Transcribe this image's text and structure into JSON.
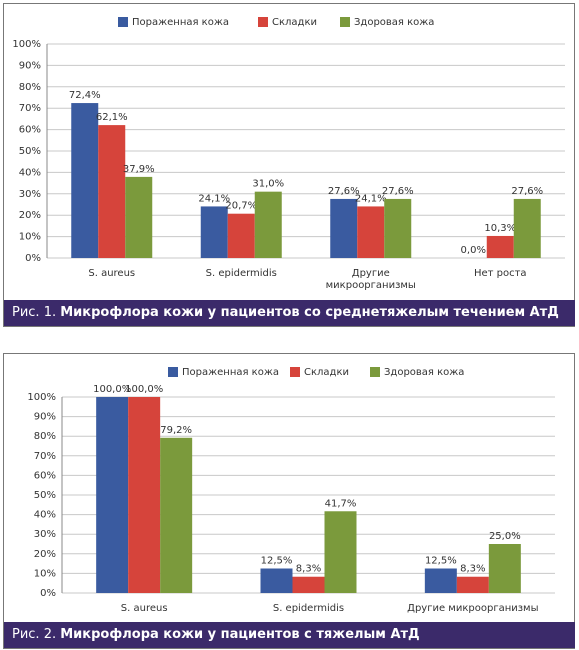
{
  "chart_data": [
    {
      "type": "bar",
      "figure_label": "Рис. 1.",
      "title": "Микрофлора кожи у пациентов со среднетяжелым течением АтД",
      "categories": [
        "S. aureus",
        "S. epidermidis",
        "Другие микроорганизмы",
        "Нет роста"
      ],
      "series": [
        {
          "name": "Пораженная кожа",
          "color": "#3a5ba0",
          "values": [
            72.4,
            24.1,
            27.6,
            0
          ],
          "value_labels": [
            "72,4%",
            "24,1%",
            "27,6%",
            "0,0%"
          ]
        },
        {
          "name": "Складки",
          "color": "#d6443b",
          "values": [
            62.1,
            20.7,
            24.1,
            10.3
          ],
          "value_labels": [
            "62,1%",
            "20,7%",
            "24,1%",
            "10,3%"
          ]
        },
        {
          "name": "Здоровая кожа",
          "color": "#7b9a3c",
          "values": [
            37.9,
            31.0,
            27.6,
            27.6
          ],
          "value_labels": [
            "37,9%",
            "31,0%",
            "27,6%",
            "27,6%"
          ]
        }
      ],
      "ylim": [
        0,
        100
      ],
      "yticks": [
        {
          "value": 0,
          "label": "0%"
        },
        {
          "value": 10,
          "label": "10%"
        },
        {
          "value": 20,
          "label": "20%"
        },
        {
          "value": 30,
          "label": "30%"
        },
        {
          "value": 40,
          "label": "40%"
        },
        {
          "value": 50,
          "label": "50%"
        },
        {
          "value": 60,
          "label": "60%"
        },
        {
          "value": 70,
          "label": "70%"
        },
        {
          "value": 80,
          "label": "80%"
        },
        {
          "value": 90,
          "label": "90%"
        },
        {
          "value": 100,
          "label": "100%"
        }
      ],
      "grid": true,
      "legend": "top"
    },
    {
      "type": "bar",
      "figure_label": "Рис. 2.",
      "title": "Микрофлора кожи у пациентов с тяжелым АтД",
      "categories": [
        "S. aureus",
        "S. epidermidis",
        "Другие микроорганизмы"
      ],
      "series": [
        {
          "name": "Пораженная кожа",
          "color": "#3a5ba0",
          "values": [
            100.0,
            12.5,
            12.5
          ],
          "value_labels": [
            "100,0%",
            "12,5%",
            "12,5%"
          ]
        },
        {
          "name": "Складки",
          "color": "#d6443b",
          "values": [
            100.0,
            8.3,
            8.3
          ],
          "value_labels": [
            "100,0%",
            "8,3%",
            "8,3%"
          ]
        },
        {
          "name": "Здоровая кожа",
          "color": "#7b9a3c",
          "values": [
            79.2,
            41.7,
            25.0
          ],
          "value_labels": [
            "79,2%",
            "41,7%",
            "25,0%"
          ]
        }
      ],
      "ylim": [
        0,
        100
      ],
      "yticks": [
        {
          "value": 0,
          "label": "0%"
        },
        {
          "value": 10,
          "label": "10%"
        },
        {
          "value": 20,
          "label": "20%"
        },
        {
          "value": 30,
          "label": "30%"
        },
        {
          "value": 40,
          "label": "40%"
        },
        {
          "value": 50,
          "label": "50%"
        },
        {
          "value": 60,
          "label": "60%"
        },
        {
          "value": 70,
          "label": "70%"
        },
        {
          "value": 80,
          "label": "80%"
        },
        {
          "value": 90,
          "label": "90%"
        },
        {
          "value": 100,
          "label": "100%"
        }
      ],
      "grid": true,
      "legend": "top"
    }
  ]
}
